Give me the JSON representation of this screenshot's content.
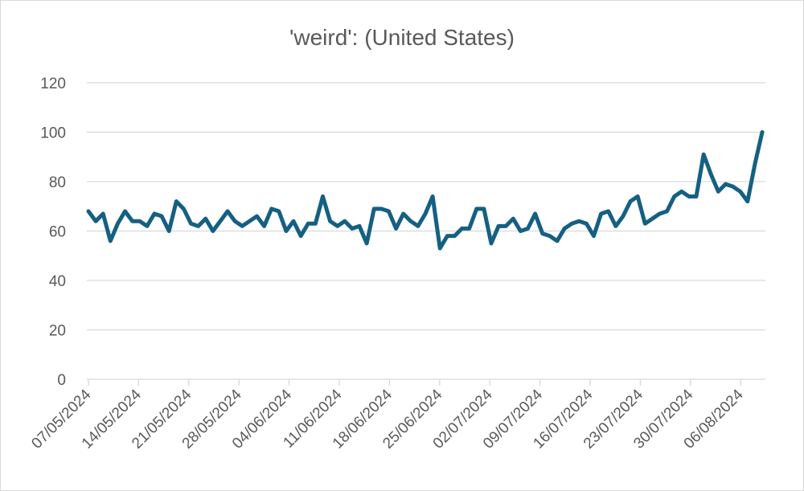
{
  "chart_data": {
    "type": "line",
    "title": "'weird': (United States)",
    "xlabel": "",
    "ylabel": "",
    "ylim": [
      0,
      120
    ],
    "yticks": [
      0,
      20,
      40,
      60,
      80,
      100,
      120
    ],
    "grid": true,
    "legend": "none",
    "x_start": "07/05/2024",
    "x_end": "09/08/2024",
    "xtick_labels": [
      "07/05/2024",
      "14/05/2024",
      "21/05/2024",
      "28/05/2024",
      "04/06/2024",
      "11/06/2024",
      "18/06/2024",
      "25/06/2024",
      "02/07/2024",
      "09/07/2024",
      "16/07/2024",
      "23/07/2024",
      "30/07/2024",
      "06/08/2024"
    ],
    "series": [
      {
        "name": "",
        "color": "#156082",
        "values": [
          68,
          64,
          67,
          56,
          63,
          68,
          64,
          64,
          62,
          67,
          66,
          60,
          72,
          69,
          63,
          62,
          65,
          60,
          64,
          68,
          64,
          62,
          64,
          66,
          62,
          69,
          68,
          60,
          64,
          58,
          63,
          63,
          74,
          64,
          62,
          64,
          61,
          62,
          55,
          69,
          69,
          68,
          61,
          67,
          64,
          62,
          67,
          74,
          53,
          58,
          58,
          61,
          61,
          69,
          69,
          55,
          62,
          62,
          65,
          60,
          61,
          67,
          59,
          58,
          56,
          61,
          63,
          64,
          63,
          58,
          67,
          68,
          62,
          66,
          72,
          74,
          63,
          65,
          67,
          68,
          74,
          76,
          74,
          74,
          91,
          83,
          76,
          79,
          78,
          76,
          72,
          87,
          100
        ]
      }
    ]
  }
}
